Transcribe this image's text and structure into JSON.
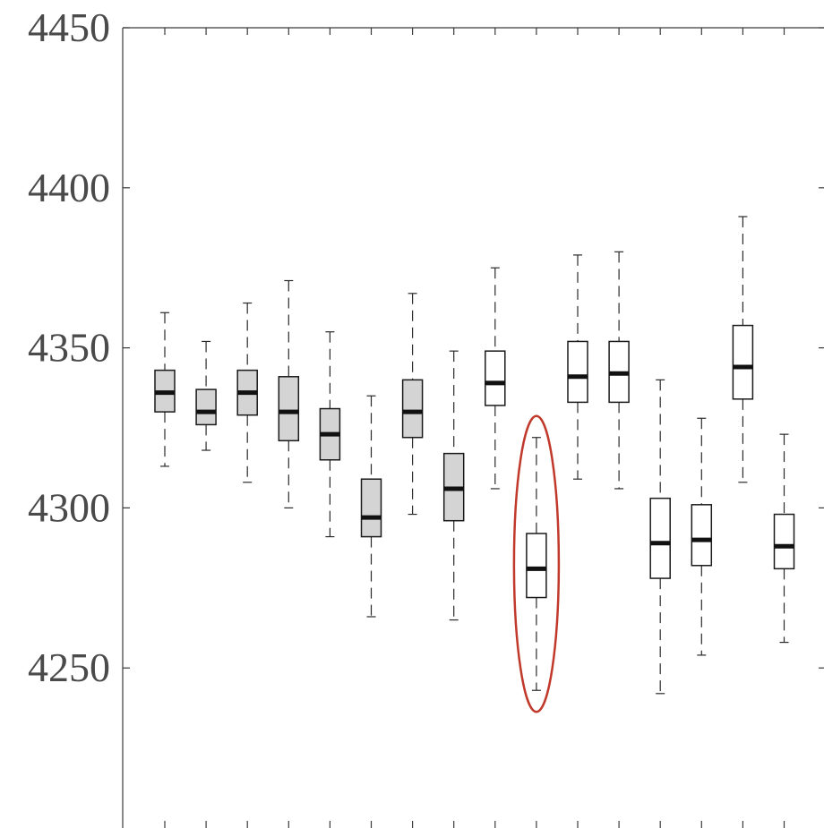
{
  "chart_data": {
    "type": "box",
    "title": "",
    "xlabel": "",
    "ylabel": "",
    "ylim": [
      4200,
      4450
    ],
    "yticks": [
      4250,
      4300,
      4350,
      4400,
      4450
    ],
    "ytick_labels": [
      "4250",
      "4300",
      "4350",
      "4400",
      "4450"
    ],
    "grid": false,
    "legend": "none",
    "colors": {
      "filled_box": "#d4d4d4",
      "open_box": "#ffffff",
      "highlight_ellipse": "#c0392b",
      "axis": "#3a3a3a"
    },
    "boxes": [
      {
        "whisker_low": 4313,
        "q1": 4330,
        "median": 4336,
        "q3": 4343,
        "whisker_high": 4361,
        "filled": true
      },
      {
        "whisker_low": 4318,
        "q1": 4326,
        "median": 4330,
        "q3": 4337,
        "whisker_high": 4352,
        "filled": true
      },
      {
        "whisker_low": 4308,
        "q1": 4329,
        "median": 4336,
        "q3": 4343,
        "whisker_high": 4364,
        "filled": true
      },
      {
        "whisker_low": 4300,
        "q1": 4321,
        "median": 4330,
        "q3": 4341,
        "whisker_high": 4371,
        "filled": true
      },
      {
        "whisker_low": 4291,
        "q1": 4315,
        "median": 4323,
        "q3": 4331,
        "whisker_high": 4355,
        "filled": true
      },
      {
        "whisker_low": 4266,
        "q1": 4291,
        "median": 4297,
        "q3": 4309,
        "whisker_high": 4335,
        "filled": true
      },
      {
        "whisker_low": 4298,
        "q1": 4322,
        "median": 4330,
        "q3": 4340,
        "whisker_high": 4367,
        "filled": true
      },
      {
        "whisker_low": 4265,
        "q1": 4296,
        "median": 4306,
        "q3": 4317,
        "whisker_high": 4349,
        "filled": true
      },
      {
        "whisker_low": 4306,
        "q1": 4332,
        "median": 4339,
        "q3": 4349,
        "whisker_high": 4375,
        "filled": false
      },
      {
        "whisker_low": 4243,
        "q1": 4272,
        "median": 4281,
        "q3": 4292,
        "whisker_high": 4322,
        "filled": false,
        "highlighted": true
      },
      {
        "whisker_low": 4309,
        "q1": 4333,
        "median": 4341,
        "q3": 4352,
        "whisker_high": 4379,
        "filled": false
      },
      {
        "whisker_low": 4306,
        "q1": 4333,
        "median": 4342,
        "q3": 4352,
        "whisker_high": 4380,
        "filled": false
      },
      {
        "whisker_low": 4242,
        "q1": 4278,
        "median": 4289,
        "q3": 4303,
        "whisker_high": 4340,
        "filled": false
      },
      {
        "whisker_low": 4254,
        "q1": 4282,
        "median": 4290,
        "q3": 4301,
        "whisker_high": 4328,
        "filled": false
      },
      {
        "whisker_low": 4308,
        "q1": 4334,
        "median": 4344,
        "q3": 4357,
        "whisker_high": 4391,
        "filled": false
      },
      {
        "whisker_low": 4258,
        "q1": 4281,
        "median": 4288,
        "q3": 4298,
        "whisker_high": 4323,
        "filled": false
      }
    ]
  }
}
